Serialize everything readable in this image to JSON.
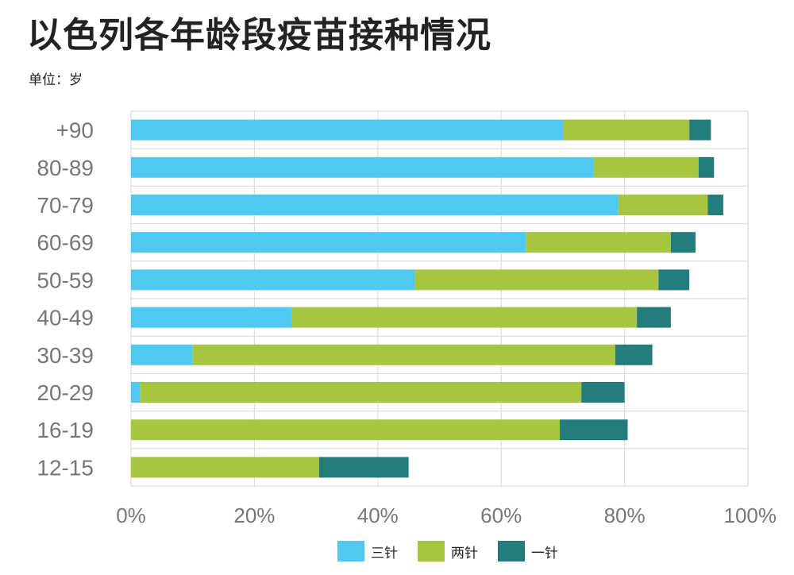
{
  "title": "以色列各年龄段疫苗接种情况",
  "unit_label": "单位：岁",
  "chart_data": {
    "type": "bar",
    "orientation": "horizontal",
    "stacked": true,
    "categories": [
      "+90",
      "80-89",
      "70-79",
      "60-69",
      "50-59",
      "40-49",
      "30-39",
      "20-29",
      "16-19",
      "12-15"
    ],
    "series": [
      {
        "name": "三针",
        "color": "#4fc8f2",
        "values": [
          70,
          75,
          79,
          64,
          46,
          26,
          10,
          1.5,
          0,
          0
        ]
      },
      {
        "name": "两针",
        "color": "#a6c642",
        "values": [
          20.5,
          17,
          14.5,
          23.5,
          39.5,
          56,
          68.5,
          71.5,
          69.5,
          30.5
        ]
      },
      {
        "name": "一针",
        "color": "#257c7c",
        "values": [
          3.5,
          2.5,
          2.5,
          4,
          5,
          5.5,
          6,
          7,
          11,
          14.5
        ]
      }
    ],
    "xlim": [
      0,
      100
    ],
    "xticks": [
      "0%",
      "20%",
      "40%",
      "60%",
      "80%",
      "100%"
    ],
    "grid": true,
    "legend_position": "bottom"
  }
}
